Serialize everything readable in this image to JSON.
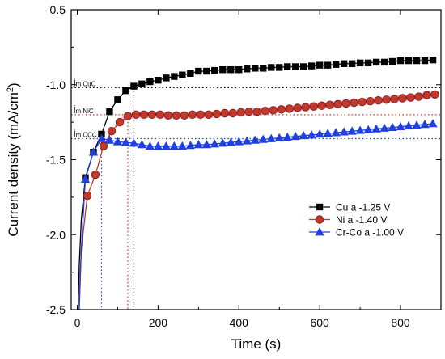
{
  "chart_data": {
    "type": "line",
    "xlabel": "Time (s)",
    "ylabel_main": "Current density (mA/cm",
    "ylabel_sup": "2",
    "ylabel_close": ")",
    "xlim": [
      -15,
      900
    ],
    "ylim": [
      -2.5,
      -0.5
    ],
    "xticks": [
      0,
      200,
      400,
      600,
      800
    ],
    "yticks": [
      -2.5,
      -2.0,
      -1.5,
      -1.0,
      -0.5
    ],
    "ytick_labels": [
      "-2.5",
      "-2.0",
      "-1.5",
      "-1.0",
      "-0.5"
    ],
    "grid": false,
    "legend_position": "lower-right",
    "series": [
      {
        "name": "Cu a -1.25 V",
        "color": "#000000",
        "marker": "square",
        "x": [
          2,
          5,
          10,
          20,
          40,
          60,
          80,
          100,
          120,
          140,
          160,
          180,
          200,
          220,
          240,
          260,
          280,
          300,
          320,
          340,
          360,
          380,
          400,
          420,
          440,
          460,
          480,
          500,
          520,
          540,
          560,
          580,
          600,
          620,
          640,
          660,
          680,
          700,
          720,
          740,
          760,
          780,
          800,
          820,
          840,
          860,
          880
        ],
        "y": [
          -2.5,
          -2.2,
          -1.9,
          -1.62,
          -1.45,
          -1.33,
          -1.18,
          -1.1,
          -1.04,
          -1.01,
          -0.995,
          -0.98,
          -0.97,
          -0.955,
          -0.945,
          -0.935,
          -0.925,
          -0.91,
          -0.91,
          -0.905,
          -0.9,
          -0.9,
          -0.9,
          -0.895,
          -0.89,
          -0.89,
          -0.885,
          -0.885,
          -0.88,
          -0.88,
          -0.88,
          -0.875,
          -0.87,
          -0.87,
          -0.865,
          -0.86,
          -0.86,
          -0.855,
          -0.855,
          -0.85,
          -0.85,
          -0.845,
          -0.84,
          -0.84,
          -0.84,
          -0.84,
          -0.835
        ]
      },
      {
        "name": "Ni a -1.40 V",
        "color": "#c0392b",
        "marker": "circle",
        "x": [
          5,
          10,
          25,
          45,
          65,
          85,
          105,
          125,
          145,
          165,
          185,
          205,
          225,
          245,
          265,
          285,
          305,
          325,
          345,
          365,
          385,
          405,
          425,
          445,
          465,
          485,
          505,
          525,
          545,
          565,
          585,
          605,
          625,
          645,
          665,
          685,
          705,
          725,
          745,
          765,
          785,
          805,
          825,
          845,
          865,
          885
        ],
        "y": [
          -2.4,
          -2.1,
          -1.74,
          -1.6,
          -1.41,
          -1.31,
          -1.25,
          -1.21,
          -1.2,
          -1.2,
          -1.2,
          -1.2,
          -1.205,
          -1.205,
          -1.205,
          -1.2,
          -1.2,
          -1.2,
          -1.195,
          -1.19,
          -1.19,
          -1.185,
          -1.18,
          -1.18,
          -1.175,
          -1.17,
          -1.165,
          -1.16,
          -1.155,
          -1.15,
          -1.145,
          -1.14,
          -1.135,
          -1.13,
          -1.125,
          -1.12,
          -1.115,
          -1.11,
          -1.105,
          -1.1,
          -1.095,
          -1.09,
          -1.085,
          -1.08,
          -1.07,
          -1.065
        ]
      },
      {
        "name": "Cr-Co a -1.00 V",
        "color": "#1f3fe0",
        "marker": "triangle",
        "x": [
          5,
          10,
          20,
          40,
          60,
          80,
          100,
          120,
          140,
          160,
          180,
          200,
          220,
          240,
          260,
          280,
          300,
          320,
          340,
          360,
          380,
          400,
          420,
          440,
          460,
          480,
          500,
          520,
          540,
          560,
          580,
          600,
          620,
          640,
          660,
          680,
          700,
          720,
          740,
          760,
          780,
          800,
          820,
          840,
          860,
          880
        ],
        "y": [
          -2.5,
          -2.1,
          -1.63,
          -1.45,
          -1.36,
          -1.37,
          -1.38,
          -1.385,
          -1.39,
          -1.4,
          -1.41,
          -1.41,
          -1.41,
          -1.41,
          -1.41,
          -1.405,
          -1.4,
          -1.4,
          -1.395,
          -1.39,
          -1.385,
          -1.38,
          -1.375,
          -1.37,
          -1.365,
          -1.36,
          -1.355,
          -1.35,
          -1.345,
          -1.34,
          -1.335,
          -1.33,
          -1.325,
          -1.32,
          -1.315,
          -1.31,
          -1.305,
          -1.3,
          -1.295,
          -1.29,
          -1.285,
          -1.28,
          -1.275,
          -1.27,
          -1.265,
          -1.26
        ]
      }
    ],
    "reference_lines": [
      {
        "label_main": "j",
        "label_sub": "m CuC",
        "y": -1.02,
        "x": 140,
        "color": "#000000"
      },
      {
        "label_main": "j",
        "label_sub": "m NiC",
        "y": -1.2,
        "x": 125,
        "color": "#c0392b"
      },
      {
        "label_main": "j",
        "label_sub": "m CCC",
        "y": -1.36,
        "x": 60,
        "color": "#1f3fe0"
      }
    ],
    "band_color": "#f5a3f0"
  }
}
